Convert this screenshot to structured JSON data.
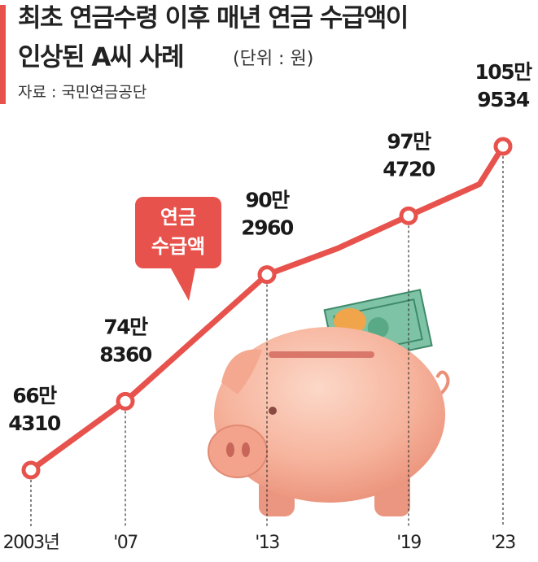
{
  "chart_data": {
    "type": "line",
    "title": [
      "최초 연금수령 이후 매년 연금 수급액이",
      "인상된 A씨 사례"
    ],
    "subtitle": "(단위 : 원)",
    "source": "자료 : 국민연금공단",
    "annotation": [
      "연금",
      "수급액"
    ],
    "x": [
      2003,
      2007,
      2013,
      2016,
      2019,
      2022,
      2023
    ],
    "values": [
      664310,
      748360,
      902960,
      935100,
      974720,
      1013400,
      1059534
    ],
    "value_labels": [
      [
        "66만",
        "4310"
      ],
      [
        "74만",
        "8360"
      ],
      [
        "90만",
        "2960"
      ],
      null,
      [
        "97만",
        "4720"
      ],
      null,
      [
        "105만",
        "9534"
      ]
    ],
    "color": "#e8524c",
    "xlim": [
      2003,
      2023
    ],
    "xticks": [
      {
        "value": 2003,
        "label": "2003년"
      },
      {
        "value": 2007,
        "label": "'07"
      },
      {
        "value": 2013,
        "label": "'13"
      },
      {
        "value": 2019,
        "label": "'19"
      },
      {
        "value": 2023,
        "label": "'23"
      }
    ]
  }
}
